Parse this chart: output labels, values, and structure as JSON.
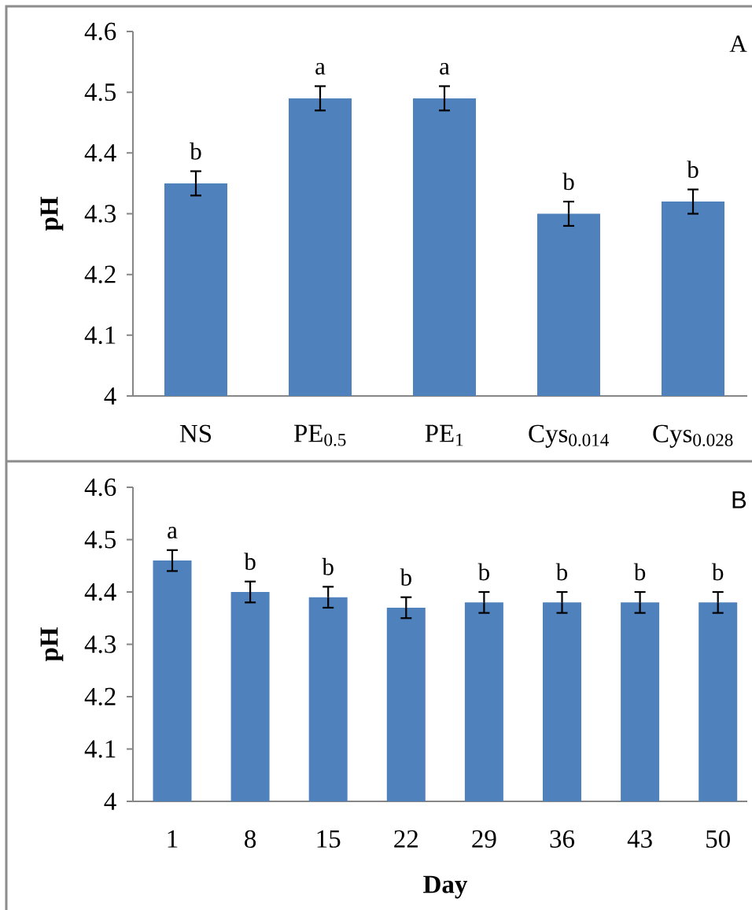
{
  "chart_data": [
    {
      "type": "bar",
      "ylabel": "pH",
      "categories": [
        "NS",
        "PE$_{0.5}$",
        "PE$_{1}$",
        "Cys$_{0.014}$",
        "Cys$_{0.028}$"
      ],
      "values": [
        4.35,
        4.49,
        4.49,
        4.3,
        4.32
      ],
      "errors": [
        0.02,
        0.02,
        0.02,
        0.02,
        0.02
      ],
      "color": "#4f81bd",
      "ylim": [
        4,
        4.6
      ],
      "yticks": [
        4,
        4.1,
        4.2,
        4.3,
        4.4,
        4.5,
        4.6
      ],
      "annotations": [
        {
          "text": "b",
          "x": "NS",
          "y": 4.37
        },
        {
          "text": "a",
          "x": "PE$_{0.5}$",
          "y": 4.51
        },
        {
          "text": "a",
          "x": "PE$_{1}$",
          "y": 4.51
        },
        {
          "text": "b",
          "x": "Cys$_{0.014}$",
          "y": 4.32
        },
        {
          "text": "b",
          "x": "Cys$_{0.028}$",
          "y": 4.34
        },
        "A"
      ]
    },
    {
      "type": "bar",
      "ylabel": "pH",
      "xlabel": "Day",
      "categories": [
        "1",
        "8",
        "15",
        "22",
        "29",
        "36",
        "43",
        "50"
      ],
      "values": [
        4.46,
        4.4,
        4.39,
        4.37,
        4.38,
        4.38,
        4.38,
        4.38
      ],
      "errors": [
        0.02,
        0.02,
        0.02,
        0.02,
        0.02,
        0.02,
        0.02,
        0.02
      ],
      "color": "#4f81bd",
      "ylim": [
        4,
        4.6
      ],
      "yticks": [
        4,
        4.1,
        4.2,
        4.3,
        4.4,
        4.5,
        4.6
      ],
      "annotations": [
        {
          "text": "a",
          "x": "1",
          "y": 4.48
        },
        {
          "text": "b",
          "x": "8",
          "y": 4.42
        },
        {
          "text": "b",
          "x": "15",
          "y": 4.41
        },
        {
          "text": "b",
          "x": "22",
          "y": 4.39
        },
        {
          "text": "b",
          "x": "29",
          "y": 4.4
        },
        {
          "text": "b",
          "x": "36",
          "y": 4.4
        },
        {
          "text": "b",
          "x": "43",
          "y": 4.4
        },
        {
          "text": "b",
          "x": "50",
          "y": 4.4
        },
        "B"
      ]
    }
  ]
}
